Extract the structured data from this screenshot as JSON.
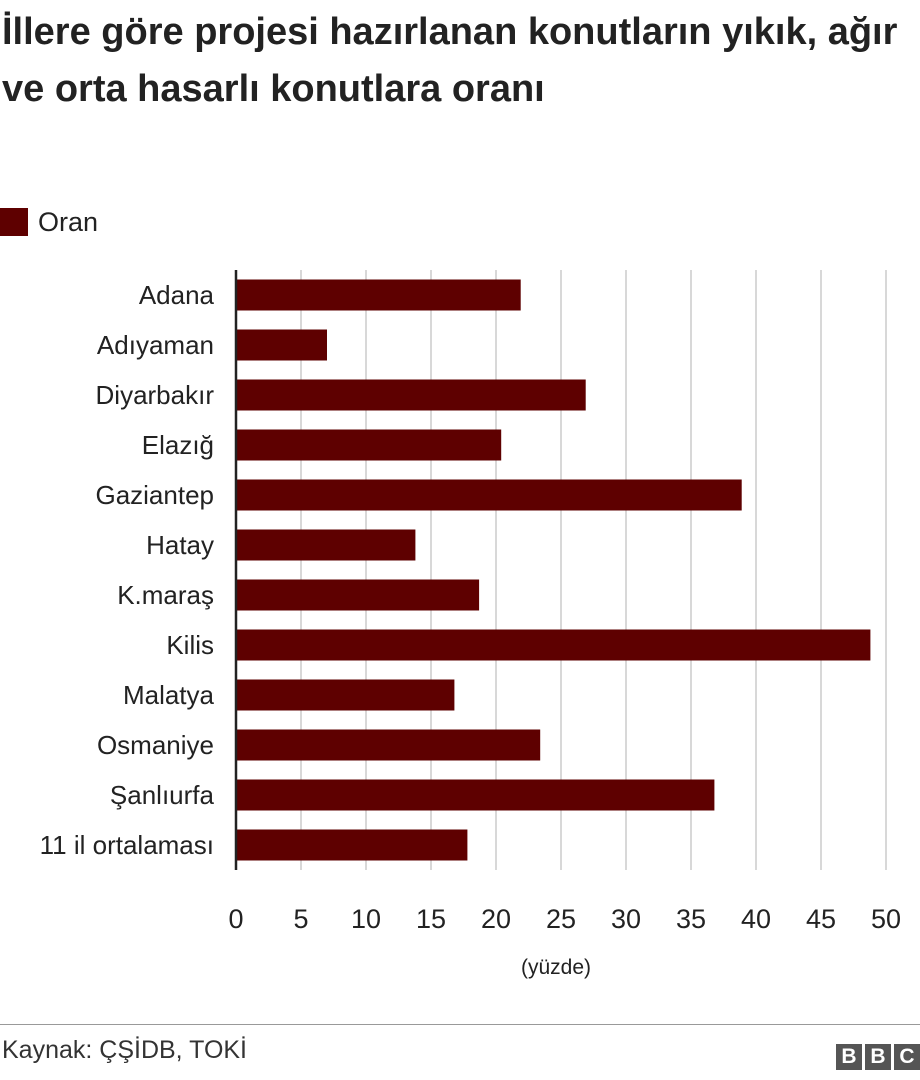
{
  "chart_data": {
    "type": "bar",
    "orientation": "horizontal",
    "title": "İllere göre projesi hazırlanan konutların yıkık, ağır ve orta hasarlı konutlara oranı",
    "categories": [
      "Adana",
      "Adıyaman",
      "Diyarbakır",
      "Elazığ",
      "Gaziantep",
      "Hatay",
      "K.maraş",
      "Kilis",
      "Malatya",
      "Osmaniye",
      "Şanlıurfa",
      "11 il ortalaması"
    ],
    "series": [
      {
        "name": "Oran",
        "values": [
          21.9,
          7.0,
          26.9,
          20.4,
          38.9,
          13.8,
          18.7,
          48.8,
          16.8,
          23.4,
          36.8,
          17.8
        ]
      }
    ],
    "xlabel": "(yüzde)",
    "ylabel": "",
    "xlim": [
      0,
      50
    ],
    "xticks": [
      0,
      5,
      10,
      15,
      20,
      25,
      30,
      35,
      40,
      45,
      50
    ],
    "grid": true,
    "legend_position": "top-left",
    "colors": {
      "bar": "#5e0000",
      "grid": "#cccccc",
      "axis": "#222222"
    }
  },
  "footer": {
    "source": "Kaynak: ÇŞİDB, TOKİ",
    "logo_letters": [
      "B",
      "B",
      "C"
    ]
  }
}
